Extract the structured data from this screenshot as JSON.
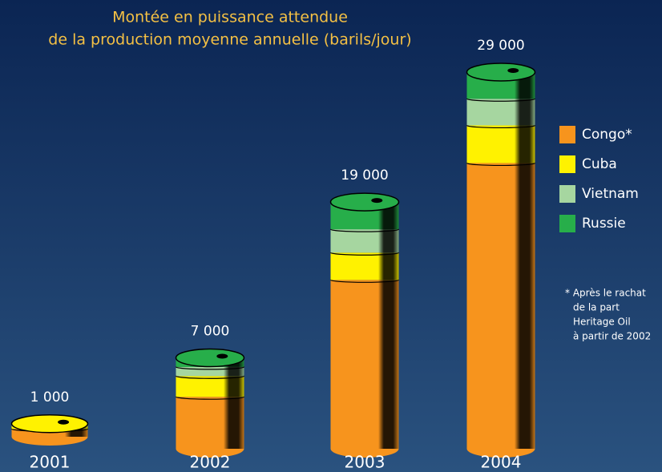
{
  "chart_data": {
    "type": "stacked-barrel",
    "title_lines": [
      "Montée en puissance attendue",
      "de la production moyenne annuelle (barils/jour)"
    ],
    "categories": [
      "2001",
      "2002",
      "2003",
      "2004"
    ],
    "series": [
      {
        "name": "Congo*",
        "color": "#f7941d",
        "values": [
          600,
          4000,
          13000,
          22000
        ]
      },
      {
        "name": "Cuba",
        "color": "#fff200",
        "values": [
          400,
          1600,
          2100,
          2900
        ]
      },
      {
        "name": "Vietnam",
        "color": "#a6d6a0",
        "values": [
          0,
          700,
          1800,
          2050
        ]
      },
      {
        "name": "Russie",
        "color": "#27ae4a",
        "values": [
          0,
          700,
          2100,
          2050
        ]
      }
    ],
    "totals": {
      "values": [
        1000,
        7000,
        19000,
        29000
      ],
      "value_labels": [
        "1 000",
        "7 000",
        "19 000",
        "29 000"
      ]
    },
    "footnote_lines": [
      "* Après le rachat",
      "de la part",
      "Heritage Oil",
      "à partir de 2002"
    ]
  }
}
